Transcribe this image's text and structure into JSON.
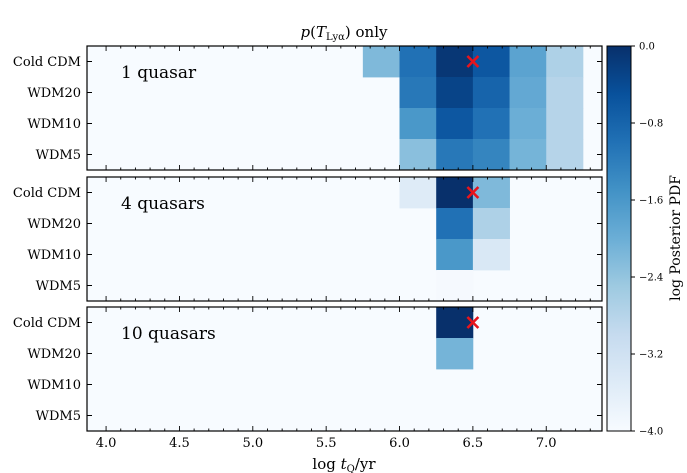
{
  "chart_data": {
    "type": "heatmap",
    "title": "p(T_Lyα) only",
    "xlabel": "log t_Q/yr",
    "xticks": [
      "4.0",
      "4.5",
      "5.0",
      "5.5",
      "6.0",
      "6.5",
      "7.0"
    ],
    "xlim": [
      3.87,
      7.38
    ],
    "x_bins": [
      5.875,
      6.125,
      6.375,
      6.625,
      6.875,
      7.125
    ],
    "models": [
      "Cold CDM",
      "WDM20",
      "WDM10",
      "WDM5"
    ],
    "colorbar": {
      "label": "log Posterior PDF",
      "ticks": [
        "0.0",
        "−0.8",
        "−1.6",
        "−2.4",
        "−3.2",
        "−4.0"
      ],
      "range": [
        -4.0,
        0.0
      ],
      "colormap": "Blues"
    },
    "marker": {
      "symbol": "×",
      "color": "#e8141c"
    },
    "panels": [
      {
        "label": "1 quasar",
        "marker_at": {
          "x": 6.5,
          "model": "Cold CDM"
        },
        "values": [
          [
            -2.2,
            -1.0,
            -0.1,
            -0.6,
            -1.8,
            -2.7
          ],
          [
            -4.0,
            -1.1,
            -0.3,
            -0.8,
            -1.9,
            -2.8
          ],
          [
            -4.0,
            -1.6,
            -0.6,
            -1.0,
            -2.0,
            -2.8
          ],
          [
            -4.0,
            -2.3,
            -1.1,
            -1.3,
            -2.1,
            -2.8
          ]
        ]
      },
      {
        "label": "4 quasars",
        "marker_at": {
          "x": 6.5,
          "model": "Cold CDM"
        },
        "values": [
          [
            -4.0,
            -3.5,
            0.0,
            -2.2,
            -4.0,
            -4.0
          ],
          [
            -4.0,
            -4.0,
            -1.0,
            -2.7,
            -4.0,
            -4.0
          ],
          [
            -4.0,
            -4.0,
            -1.6,
            -3.4,
            -4.0,
            -4.0
          ],
          [
            -4.0,
            -4.0,
            -3.95,
            -4.0,
            -4.0,
            -4.0
          ]
        ]
      },
      {
        "label": "10 quasars",
        "marker_at": {
          "x": 6.5,
          "model": "Cold CDM"
        },
        "values": [
          [
            -4.0,
            -4.0,
            0.0,
            -4.0,
            -4.0,
            -4.0
          ],
          [
            -4.0,
            -4.0,
            -2.1,
            -4.0,
            -4.0,
            -4.0
          ],
          [
            -4.0,
            -4.0,
            -4.0,
            -4.0,
            -4.0,
            -4.0
          ],
          [
            -4.0,
            -4.0,
            -4.0,
            -4.0,
            -4.0,
            -4.0
          ]
        ]
      }
    ]
  }
}
